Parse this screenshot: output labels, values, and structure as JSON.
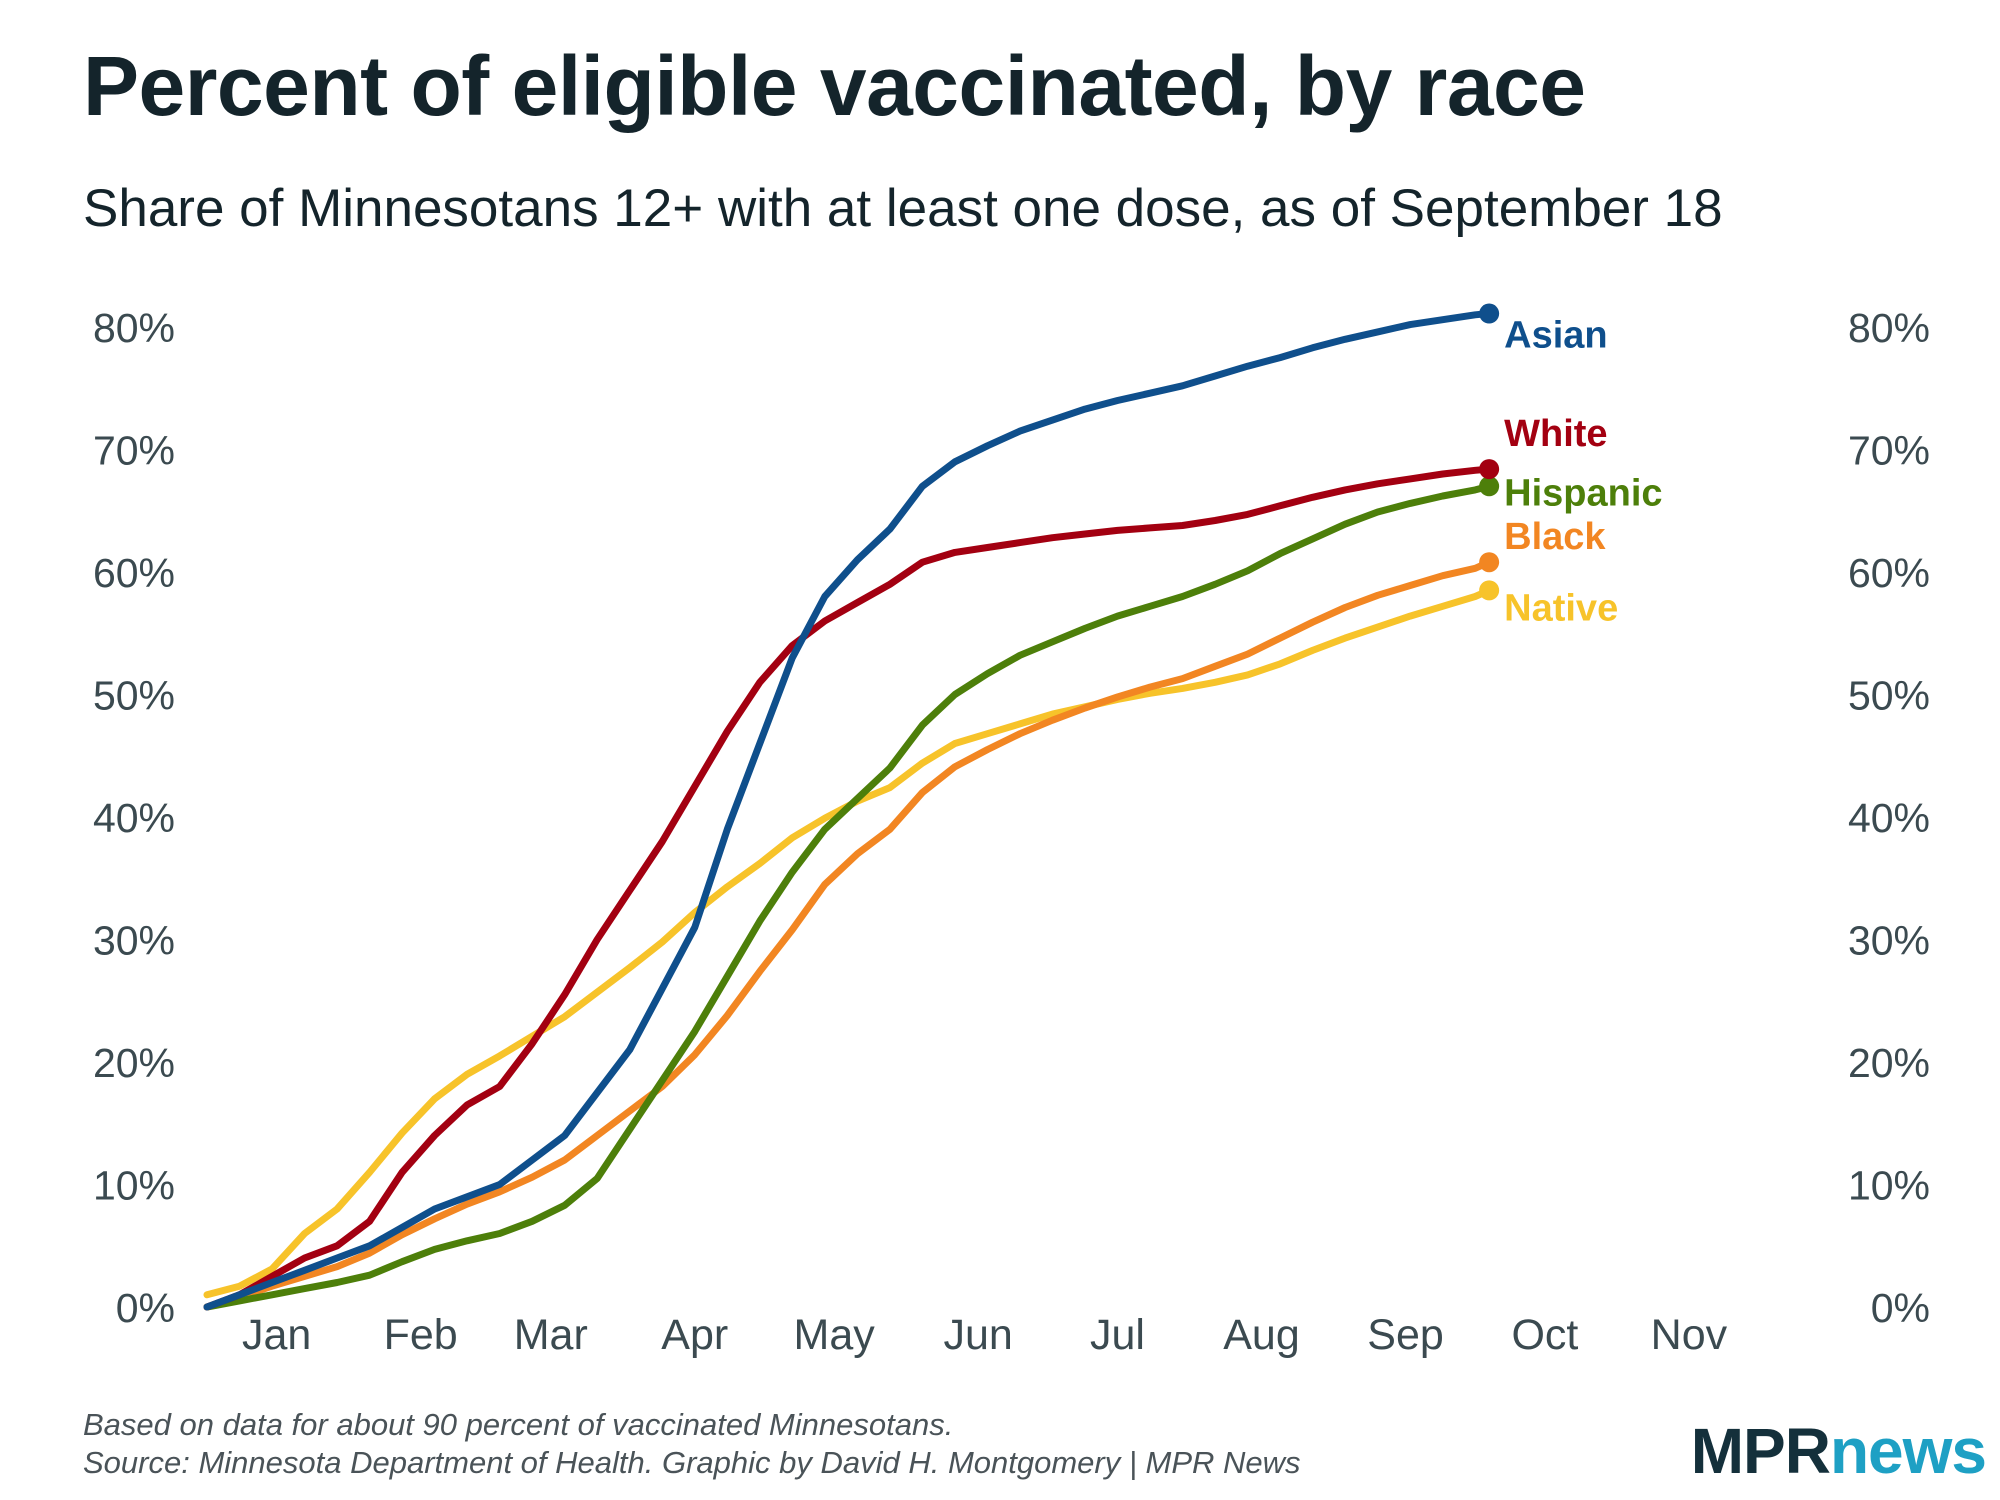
{
  "chart_data": {
    "type": "line",
    "title": "Percent of eligible vaccinated, by race",
    "subtitle": "Share of Minnesotans 12+ with at least one dose, as of September 18",
    "xlabel": "",
    "ylabel": "",
    "x_tick_labels": [
      "Jan",
      "Feb",
      "Mar",
      "Apr",
      "May",
      "Jun",
      "Jul",
      "Aug",
      "Sep",
      "Oct",
      "Nov"
    ],
    "x_tick_days": [
      15,
      46,
      74,
      105,
      135,
      166,
      196,
      227,
      258,
      288,
      319
    ],
    "xlim": [
      0,
      330
    ],
    "ylim": [
      0,
      80
    ],
    "y_tick_values": [
      0,
      10,
      20,
      30,
      40,
      50,
      60,
      70,
      80
    ],
    "y_tick_labels": [
      "0%",
      "10%",
      "20%",
      "30%",
      "40%",
      "50%",
      "60%",
      "70%",
      "80%"
    ],
    "grid": false,
    "x_unit": "day of year 2021",
    "series": [
      {
        "name": "Asian",
        "label": "Asian",
        "color": "#0f4f8c",
        "x": [
          0,
          7,
          14,
          21,
          28,
          35,
          42,
          49,
          56,
          63,
          70,
          77,
          84,
          91,
          98,
          105,
          112,
          119,
          126,
          133,
          140,
          147,
          154,
          161,
          168,
          175,
          182,
          189,
          196,
          203,
          210,
          217,
          224,
          231,
          238,
          245,
          252,
          259,
          266,
          273,
          276
        ],
        "y": [
          0,
          1,
          2,
          3,
          4,
          5,
          6.5,
          8,
          9,
          10,
          12,
          14,
          17.5,
          21,
          26,
          31,
          39,
          46,
          53,
          58,
          61,
          63.5,
          67,
          69,
          70.3,
          71.5,
          72.4,
          73.3,
          74,
          74.6,
          75.2,
          76,
          76.8,
          77.5,
          78.3,
          79,
          79.6,
          80.2,
          80.6,
          81,
          81.1
        ]
      },
      {
        "name": "White",
        "label": "White",
        "color": "#a30011",
        "x": [
          0,
          7,
          14,
          21,
          28,
          35,
          42,
          49,
          56,
          63,
          70,
          77,
          84,
          91,
          98,
          105,
          112,
          119,
          126,
          133,
          140,
          147,
          154,
          161,
          168,
          175,
          182,
          189,
          196,
          203,
          210,
          217,
          224,
          231,
          238,
          245,
          252,
          259,
          266,
          273,
          276
        ],
        "y": [
          0,
          1,
          2.5,
          4,
          5,
          7,
          11,
          14,
          16.5,
          18,
          21.5,
          25.5,
          30,
          34,
          38,
          42.5,
          47,
          51,
          54,
          56,
          57.5,
          59,
          60.8,
          61.6,
          62,
          62.4,
          62.8,
          63.1,
          63.4,
          63.6,
          63.8,
          64.2,
          64.7,
          65.4,
          66.1,
          66.7,
          67.2,
          67.6,
          68,
          68.3,
          68.4
        ]
      },
      {
        "name": "Hispanic",
        "label": "Hispanic",
        "color": "#4d7f0a",
        "x": [
          0,
          7,
          14,
          21,
          28,
          35,
          42,
          49,
          56,
          63,
          70,
          77,
          84,
          91,
          98,
          105,
          112,
          119,
          126,
          133,
          140,
          147,
          154,
          161,
          168,
          175,
          182,
          189,
          196,
          203,
          210,
          217,
          224,
          231,
          238,
          245,
          252,
          259,
          266,
          273,
          276
        ],
        "y": [
          0,
          0.5,
          1,
          1.5,
          2,
          2.6,
          3.7,
          4.7,
          5.4,
          6,
          7,
          8.3,
          10.5,
          14.5,
          18.5,
          22.5,
          27,
          31.5,
          35.5,
          39,
          41.5,
          44,
          47.5,
          50,
          51.7,
          53.2,
          54.3,
          55.4,
          56.4,
          57.2,
          58,
          59,
          60.1,
          61.5,
          62.7,
          63.9,
          64.9,
          65.6,
          66.2,
          66.7,
          67
        ]
      },
      {
        "name": "Black",
        "label": "Black",
        "color": "#f28622",
        "x": [
          0,
          7,
          14,
          21,
          28,
          35,
          42,
          49,
          56,
          63,
          70,
          77,
          84,
          91,
          98,
          105,
          112,
          119,
          126,
          133,
          140,
          147,
          154,
          161,
          168,
          175,
          182,
          189,
          196,
          203,
          210,
          217,
          224,
          231,
          238,
          245,
          252,
          259,
          266,
          273,
          276
        ],
        "y": [
          0,
          0.8,
          1.7,
          2.5,
          3.3,
          4.4,
          5.9,
          7.2,
          8.4,
          9.4,
          10.6,
          12,
          14,
          16,
          18,
          20.6,
          23.8,
          27.4,
          30.8,
          34.5,
          37,
          39,
          42,
          44.1,
          45.5,
          46.8,
          47.9,
          48.9,
          49.8,
          50.6,
          51.3,
          52.3,
          53.3,
          54.6,
          55.9,
          57.1,
          58.1,
          58.9,
          59.7,
          60.3,
          60.8
        ]
      },
      {
        "name": "Native",
        "label": "Native",
        "color": "#f7c32a",
        "x": [
          0,
          7,
          14,
          21,
          28,
          35,
          42,
          49,
          56,
          63,
          70,
          77,
          84,
          91,
          98,
          105,
          112,
          119,
          126,
          133,
          140,
          147,
          154,
          161,
          168,
          175,
          182,
          189,
          196,
          203,
          210,
          217,
          224,
          231,
          238,
          245,
          252,
          259,
          266,
          273,
          276
        ],
        "y": [
          1,
          1.7,
          3.1,
          6,
          8,
          11,
          14.2,
          17,
          19,
          20.5,
          22.1,
          23.7,
          25.7,
          27.7,
          29.8,
          32.2,
          34.3,
          36.2,
          38.3,
          39.9,
          41.3,
          42.4,
          44.4,
          46,
          46.8,
          47.6,
          48.4,
          49,
          49.6,
          50.1,
          50.5,
          51,
          51.6,
          52.5,
          53.6,
          54.6,
          55.5,
          56.4,
          57.2,
          58,
          58.5
        ]
      }
    ]
  },
  "footnote": {
    "line1": "Based on data for about 90 percent of vaccinated Minnesotans.",
    "line2": "Source: Minnesota Department of Health. Graphic by David H. Montgomery | MPR News"
  },
  "logo": {
    "part1": "MPR",
    "part2": "news"
  }
}
